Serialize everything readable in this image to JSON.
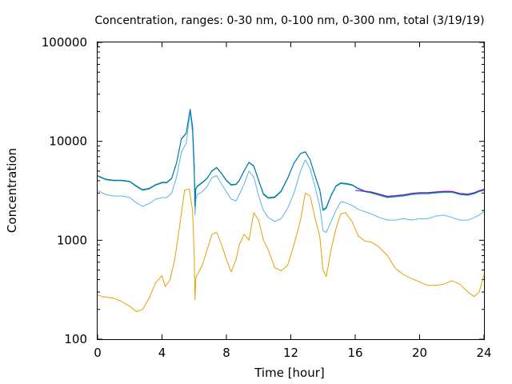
{
  "chart_data": {
    "type": "line",
    "title": "Concentration, ranges: 0-30 nm, 0-100 nm, 0-300 nm, total (3/19/19)",
    "xlabel": "Time [hour]",
    "ylabel": "Concentration",
    "xlim": [
      0,
      24
    ],
    "ylim": [
      100,
      100000
    ],
    "yscale": "log",
    "grid": false,
    "legend": "none",
    "x_ticks": [
      0,
      4,
      8,
      12,
      16,
      20,
      24
    ],
    "x_tick_labels": [
      "0",
      "4",
      "8",
      "12",
      "16",
      "20",
      "24"
    ],
    "y_ticks": [
      100,
      1000,
      10000,
      100000
    ],
    "y_tick_labels": [
      "100",
      "1000",
      "10000",
      "100000"
    ],
    "series": [
      {
        "color": "#e69f00",
        "x": [
          0,
          0.3,
          1,
          1.5,
          2,
          2.4,
          2.8,
          3.2,
          3.6,
          4.0,
          4.2,
          4.5,
          4.8,
          5.1,
          5.4,
          5.7,
          5.9,
          6.0,
          6.05,
          6.1,
          6.2,
          6.5,
          6.8,
          7.1,
          7.4,
          7.7,
          8.0,
          8.3,
          8.6,
          8.8,
          9.1,
          9.4,
          9.7,
          10.0,
          10.3,
          10.6,
          11.0,
          11.4,
          11.8,
          12.2,
          12.6,
          12.9,
          13.2,
          13.5,
          13.8,
          14.0,
          14.2,
          14.5,
          14.8,
          15.1,
          15.4,
          15.8,
          16.2,
          16.6,
          17.0,
          17.5,
          18.0,
          18.5,
          19.0,
          19.5,
          20.0,
          20.5,
          21.0,
          21.5,
          22.0,
          22.5,
          23.0,
          23.4,
          23.7,
          24.0
        ],
        "values": [
          280,
          270,
          260,
          240,
          215,
          190,
          200,
          260,
          370,
          440,
          340,
          400,
          650,
          1400,
          3200,
          3300,
          2000,
          700,
          250,
          420,
          450,
          560,
          800,
          1150,
          1200,
          900,
          640,
          480,
          640,
          900,
          1150,
          1000,
          1900,
          1600,
          1000,
          800,
          530,
          490,
          560,
          900,
          1600,
          3000,
          2800,
          1700,
          1100,
          500,
          430,
          800,
          1300,
          1850,
          1900,
          1550,
          1100,
          980,
          960,
          850,
          700,
          520,
          450,
          410,
          380,
          350,
          350,
          360,
          390,
          360,
          300,
          270,
          300,
          450
        ]
      },
      {
        "color": "#56b4e9",
        "x": [
          0,
          0.5,
          1,
          1.5,
          2,
          2.4,
          2.8,
          3.2,
          3.6,
          4.0,
          4.3,
          4.6,
          4.9,
          5.2,
          5.5,
          5.75,
          5.9,
          6.0,
          6.05,
          6.1,
          6.2,
          6.5,
          6.8,
          7.1,
          7.4,
          7.7,
          8.0,
          8.3,
          8.6,
          8.8,
          9.1,
          9.4,
          9.7,
          10.0,
          10.3,
          10.6,
          11.0,
          11.4,
          11.8,
          12.2,
          12.6,
          12.9,
          13.2,
          13.5,
          13.8,
          14.0,
          14.2,
          14.5,
          14.8,
          15.1,
          15.4,
          15.8,
          16.2,
          16.6,
          17.0,
          17.5,
          18.0,
          18.5,
          19.0,
          19.5,
          20.0,
          20.5,
          21.0,
          21.5,
          22.0,
          22.5,
          23.0,
          23.4,
          23.7,
          24.0
        ],
        "values": [
          3200,
          2900,
          2800,
          2800,
          2700,
          2400,
          2200,
          2350,
          2600,
          2700,
          2700,
          3000,
          4300,
          7800,
          9500,
          20000,
          12000,
          4500,
          1800,
          2600,
          2900,
          3100,
          3500,
          4300,
          4500,
          3700,
          3100,
          2600,
          2500,
          2900,
          3700,
          5000,
          4400,
          2800,
          2000,
          1700,
          1550,
          1650,
          2100,
          3000,
          5000,
          6500,
          5300,
          3500,
          2200,
          1250,
          1200,
          1550,
          2000,
          2450,
          2400,
          2250,
          2050,
          1950,
          1850,
          1700,
          1600,
          1600,
          1650,
          1600,
          1650,
          1650,
          1750,
          1800,
          1700,
          1600,
          1600,
          1700,
          1800,
          1950
        ]
      },
      {
        "color": "#009e73",
        "x": [
          0,
          0.5,
          1,
          1.5,
          2,
          2.4,
          2.8,
          3.2,
          3.6,
          4.0,
          4.3,
          4.6,
          4.9,
          5.2,
          5.5,
          5.75,
          5.9,
          6.0,
          6.05,
          6.1,
          6.2,
          6.5,
          6.8,
          7.1,
          7.4,
          7.7,
          8.0,
          8.3,
          8.6,
          8.8,
          9.1,
          9.4,
          9.7,
          10.0,
          10.3,
          10.6,
          11.0,
          11.4,
          11.8,
          12.2,
          12.6,
          12.9,
          13.2,
          13.5,
          13.8,
          14.0,
          14.2,
          14.5,
          14.8,
          15.1,
          15.4,
          15.8,
          16.2,
          16.6,
          17.0,
          17.5,
          18.0,
          18.5,
          19.0,
          19.5,
          20.0,
          20.5,
          21.0,
          21.5,
          22.0,
          22.5,
          23.0,
          23.4,
          23.7,
          24.0
        ],
        "values": [
          4450,
          4100,
          4000,
          4000,
          3900,
          3500,
          3200,
          3300,
          3600,
          3800,
          3800,
          4200,
          6000,
          10500,
          12000,
          21000,
          14000,
          5500,
          2200,
          3300,
          3500,
          3800,
          4200,
          5000,
          5400,
          4700,
          4000,
          3600,
          3650,
          4000,
          5000,
          6100,
          5600,
          4000,
          2900,
          2650,
          2700,
          3100,
          4200,
          6000,
          7500,
          7800,
          6500,
          4500,
          3200,
          2000,
          2100,
          2800,
          3500,
          3750,
          3700,
          3600,
          3300,
          3100,
          3000,
          2850,
          2700,
          2750,
          2800,
          2900,
          2950,
          2950,
          3000,
          3050,
          3050,
          2900,
          2850,
          2950,
          3100,
          3200
        ]
      },
      {
        "color": "#0072b2",
        "x": [
          0,
          0.5,
          1,
          1.5,
          2,
          2.4,
          2.8,
          3.2,
          3.6,
          4.0,
          4.3,
          4.6,
          4.9,
          5.2,
          5.5,
          5.75,
          5.9,
          6.0,
          6.05,
          6.1,
          6.2,
          6.5,
          6.8,
          7.1,
          7.4,
          7.7,
          8.0,
          8.3,
          8.6,
          8.8,
          9.1,
          9.4,
          9.7,
          10.0,
          10.3,
          10.6,
          11.0,
          11.4,
          11.8,
          12.2,
          12.6,
          12.9,
          13.2,
          13.5,
          13.8,
          14.0,
          14.2,
          14.5,
          14.8,
          15.1,
          15.4,
          15.8,
          16.2,
          16.6,
          17.0,
          17.5,
          18.0,
          18.5,
          19.0,
          19.5,
          20.0,
          20.5,
          21.0,
          21.5,
          22.0,
          22.5,
          23.0,
          23.4,
          23.7,
          24.0
        ],
        "values": [
          4500,
          4150,
          4050,
          4050,
          3950,
          3550,
          3250,
          3350,
          3650,
          3850,
          3850,
          4250,
          6050,
          10600,
          12100,
          21100,
          14100,
          5550,
          2250,
          3350,
          3550,
          3850,
          4250,
          5050,
          5450,
          4750,
          4050,
          3650,
          3700,
          4050,
          5050,
          6150,
          5650,
          4050,
          2950,
          2700,
          2750,
          3150,
          4250,
          6050,
          7550,
          7850,
          6550,
          4550,
          3250,
          2050,
          2150,
          2850,
          3550,
          3800,
          3750,
          3650,
          3350,
          3150,
          3050,
          2900,
          2750,
          2800,
          2850,
          2950,
          3000,
          3000,
          3050,
          3100,
          3100,
          2950,
          2900,
          3000,
          3150,
          3250
        ]
      },
      {
        "color": "#9400d3",
        "x": [
          16,
          16.5,
          17,
          17.5,
          18,
          18.5,
          19,
          19.5,
          20,
          20.5,
          21,
          21.5,
          22,
          22.5,
          23,
          23.4,
          23.7,
          24.0
        ],
        "values": [
          3200,
          3130,
          3080,
          2930,
          2780,
          2830,
          2880,
          2980,
          3030,
          3030,
          3080,
          3130,
          3130,
          2980,
          2930,
          3030,
          3180,
          3280
        ]
      }
    ]
  }
}
